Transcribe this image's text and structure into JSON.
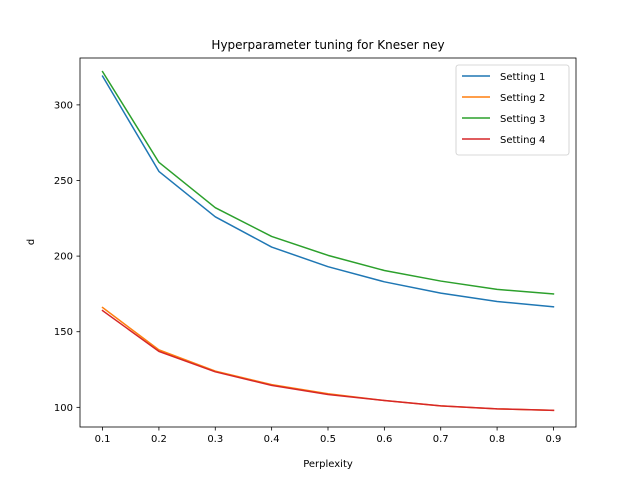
{
  "chart_data": {
    "type": "line",
    "title": "Hyperparameter tuning for Kneser ney",
    "xlabel": "Perplexity",
    "ylabel": "d",
    "x": [
      0.1,
      0.2,
      0.3,
      0.4,
      0.5,
      0.6,
      0.7,
      0.8,
      0.9
    ],
    "xlim": [
      0.06,
      0.94
    ],
    "ylim": [
      87,
      331
    ],
    "xticks": [
      0.1,
      0.2,
      0.3,
      0.4,
      0.5,
      0.6,
      0.7,
      0.8,
      0.9
    ],
    "yticks": [
      100,
      150,
      200,
      250,
      300
    ],
    "grid": false,
    "legend_position": "top-right",
    "series": [
      {
        "name": "Setting 1",
        "color": "#1f77b4",
        "values": [
          319,
          256,
          226,
          206,
          193,
          183,
          175.5,
          170,
          166.5
        ]
      },
      {
        "name": "Setting 2",
        "color": "#ff7f0e",
        "values": [
          166,
          138,
          124,
          115,
          109,
          104.5,
          101,
          99,
          98
        ]
      },
      {
        "name": "Setting 3",
        "color": "#2ca02c",
        "values": [
          322,
          262,
          232,
          213,
          200.5,
          190.5,
          183.5,
          178,
          175
        ]
      },
      {
        "name": "Setting 4",
        "color": "#d62728",
        "values": [
          164,
          137,
          123.5,
          114.5,
          108.5,
          104.5,
          101,
          99,
          98
        ]
      }
    ]
  }
}
